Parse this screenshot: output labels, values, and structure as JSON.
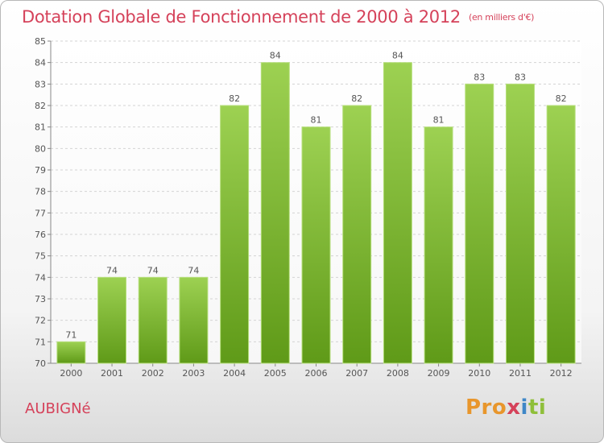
{
  "header": {
    "title": "Dotation Globale de Fonctionnement de 2000 à 2012",
    "unit": "(en milliers d'€)"
  },
  "footer": {
    "commune": "AUBIGNé",
    "logo": [
      "Pro",
      "x",
      "i",
      "ti"
    ]
  },
  "colors": {
    "bar_light": "#9dd152",
    "bar_dark": "#5f9a18",
    "accent": "#d5425a"
  },
  "chart_data": {
    "type": "bar",
    "title": "Dotation Globale de Fonctionnement de 2000 à 2012",
    "subtitle": "(en milliers d'€)",
    "xlabel": "",
    "ylabel": "",
    "categories": [
      "2000",
      "2001",
      "2002",
      "2003",
      "2004",
      "2005",
      "2006",
      "2007",
      "2008",
      "2009",
      "2010",
      "2011",
      "2012"
    ],
    "values": [
      71,
      74,
      74,
      74,
      82,
      84,
      81,
      82,
      84,
      81,
      83,
      83,
      82
    ],
    "ylim": [
      70,
      85
    ],
    "yticks": [
      70,
      71,
      72,
      73,
      74,
      75,
      76,
      77,
      78,
      79,
      80,
      81,
      82,
      83,
      84,
      85
    ],
    "grid": true,
    "legend": "none"
  }
}
